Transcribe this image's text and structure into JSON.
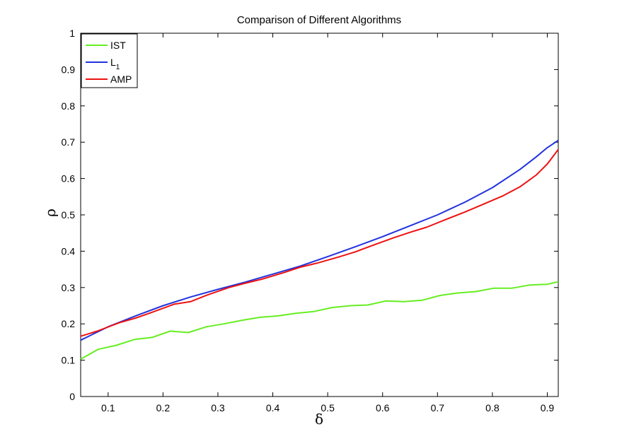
{
  "chart_data": {
    "type": "line",
    "title": "Comparison of Different Algorithms",
    "xlabel": "δ",
    "ylabel": "ρ",
    "xlim": [
      0.05,
      0.92
    ],
    "ylim": [
      0,
      1
    ],
    "xticks": [
      0.1,
      0.2,
      0.3,
      0.4,
      0.5,
      0.6,
      0.7,
      0.8,
      0.9
    ],
    "xtick_labels": [
      "0.1",
      "0.2",
      "0.3",
      "0.4",
      "0.5",
      "0.6",
      "0.7",
      "0.8",
      "0.9"
    ],
    "yticks": [
      0,
      0.1,
      0.2,
      0.3,
      0.4,
      0.5,
      0.6,
      0.7,
      0.8,
      0.9,
      1
    ],
    "ytick_labels": [
      "0",
      "0.1",
      "0.2",
      "0.3",
      "0.4",
      "0.5",
      "0.6",
      "0.7",
      "0.8",
      "0.9",
      "1"
    ],
    "grid": false,
    "legend_position": "top-left",
    "series": [
      {
        "name": "IST",
        "color": "#66ee22",
        "x": [
          0.05,
          0.082,
          0.115,
          0.148,
          0.181,
          0.213,
          0.246,
          0.279,
          0.311,
          0.344,
          0.377,
          0.41,
          0.442,
          0.475,
          0.508,
          0.541,
          0.573,
          0.606,
          0.639,
          0.672,
          0.704,
          0.737,
          0.77,
          0.802,
          0.835,
          0.868,
          0.9,
          0.92
        ],
        "values": [
          0.103,
          0.13,
          0.141,
          0.157,
          0.163,
          0.18,
          0.176,
          0.192,
          0.2,
          0.21,
          0.218,
          0.222,
          0.229,
          0.234,
          0.245,
          0.25,
          0.252,
          0.263,
          0.261,
          0.265,
          0.278,
          0.285,
          0.289,
          0.298,
          0.298,
          0.307,
          0.309,
          0.316
        ]
      },
      {
        "name": "L1",
        "color": "#2233dd",
        "x": [
          0.05,
          0.1,
          0.15,
          0.2,
          0.25,
          0.3,
          0.35,
          0.4,
          0.45,
          0.5,
          0.55,
          0.6,
          0.65,
          0.7,
          0.75,
          0.8,
          0.85,
          0.88,
          0.9,
          0.92
        ],
        "values": [
          0.155,
          0.192,
          0.222,
          0.25,
          0.274,
          0.295,
          0.315,
          0.337,
          0.359,
          0.385,
          0.412,
          0.44,
          0.47,
          0.5,
          0.535,
          0.575,
          0.625,
          0.66,
          0.685,
          0.705
        ]
      },
      {
        "name": "AMP",
        "color": "#ee1111",
        "x": [
          0.05,
          0.08,
          0.12,
          0.15,
          0.18,
          0.22,
          0.25,
          0.28,
          0.32,
          0.35,
          0.38,
          0.42,
          0.45,
          0.48,
          0.52,
          0.55,
          0.58,
          0.62,
          0.65,
          0.68,
          0.72,
          0.75,
          0.78,
          0.82,
          0.85,
          0.88,
          0.9,
          0.92
        ],
        "values": [
          0.166,
          0.18,
          0.203,
          0.216,
          0.232,
          0.254,
          0.261,
          0.279,
          0.3,
          0.312,
          0.323,
          0.341,
          0.356,
          0.367,
          0.384,
          0.398,
          0.415,
          0.437,
          0.452,
          0.466,
          0.49,
          0.508,
          0.527,
          0.553,
          0.577,
          0.61,
          0.64,
          0.68
        ]
      }
    ],
    "legend": [
      {
        "label": "IST",
        "sub": ""
      },
      {
        "label": "L",
        "sub": "1"
      },
      {
        "label": "AMP",
        "sub": ""
      }
    ]
  }
}
